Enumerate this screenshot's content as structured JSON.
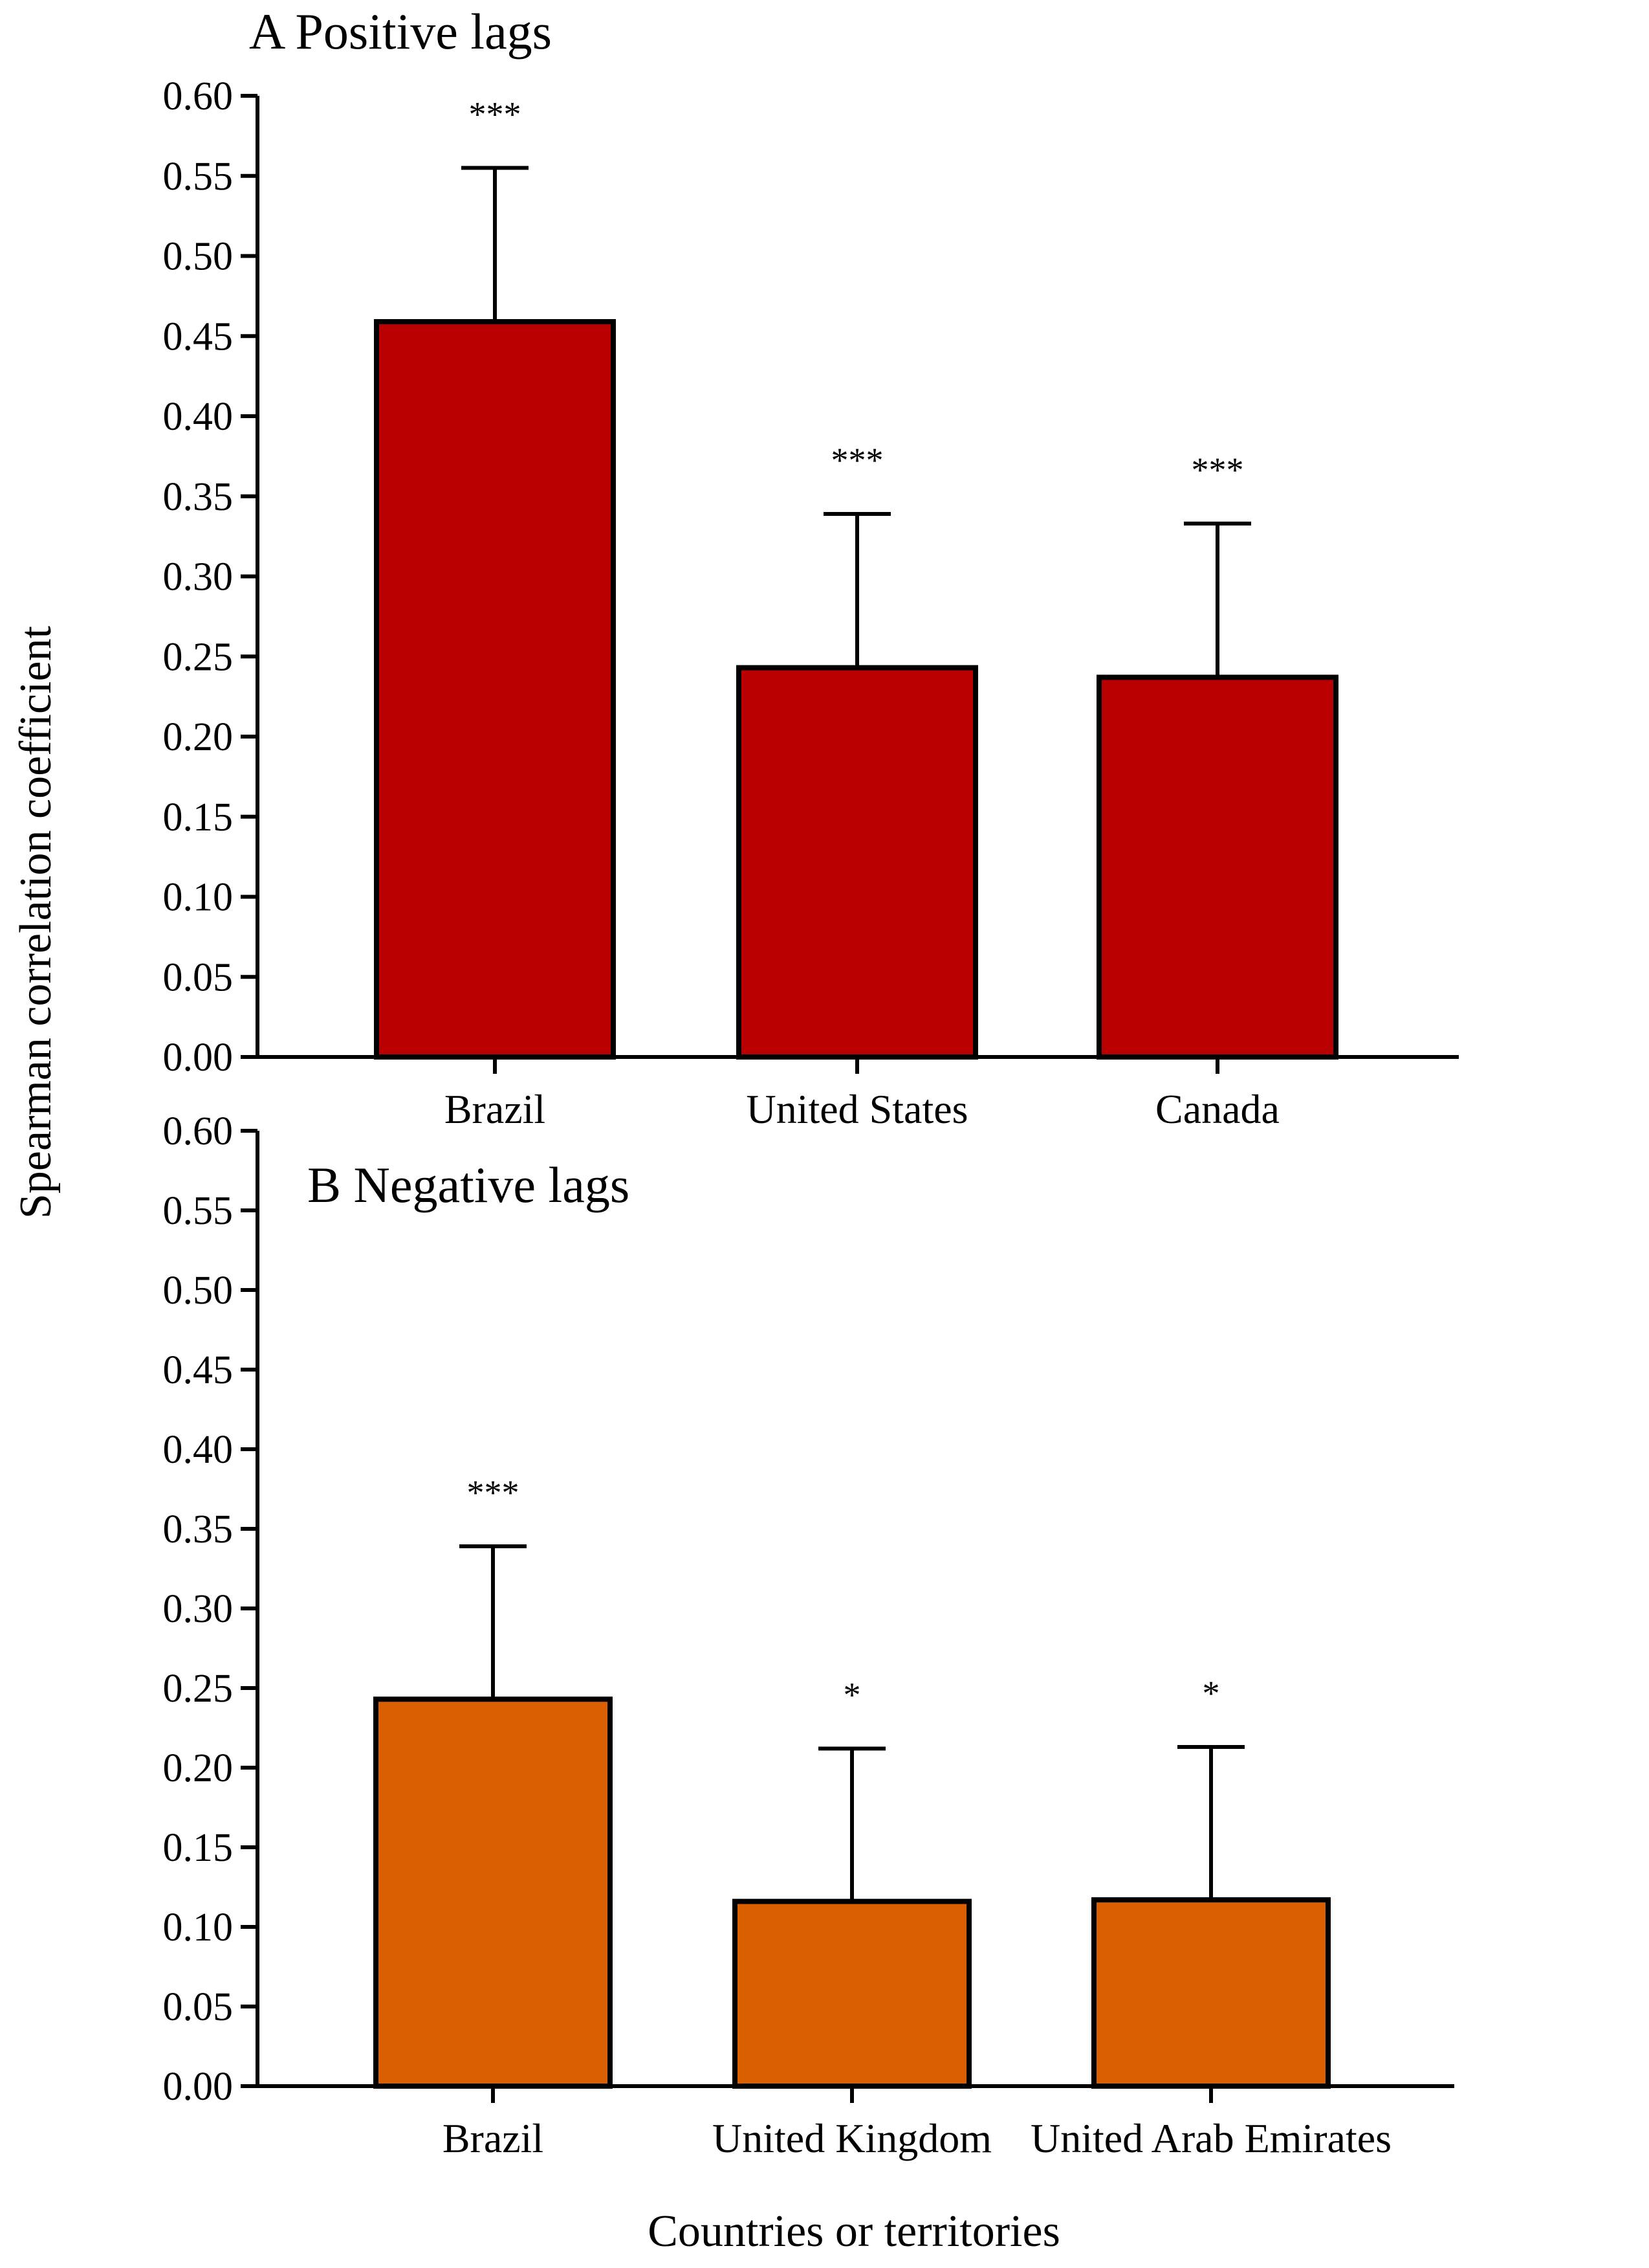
{
  "figure": {
    "ylabel": "Spearman correlation coefficient",
    "xlabel": "Countries or territories"
  },
  "chart_data": [
    {
      "type": "bar",
      "title": "A Positive lags",
      "categories": [
        "Brazil",
        "United States",
        "Canada"
      ],
      "values": [
        0.459,
        0.243,
        0.237
      ],
      "error_upper": [
        0.555,
        0.339,
        0.333
      ],
      "significance": [
        "***",
        "***",
        "***"
      ],
      "ylim": [
        0,
        0.6
      ],
      "yticks": [
        "0.00",
        "0.05",
        "0.10",
        "0.15",
        "0.20",
        "0.25",
        "0.30",
        "0.35",
        "0.40",
        "0.45",
        "0.50",
        "0.55",
        "0.60"
      ],
      "color": "#b80000",
      "xlabel": "",
      "ylabel": "Spearman correlation coefficient"
    },
    {
      "type": "bar",
      "title": "B Negative lags",
      "categories": [
        "Brazil",
        "United Kingdom",
        "United Arab Emirates"
      ],
      "values": [
        0.243,
        0.116,
        0.117
      ],
      "error_upper": [
        0.339,
        0.212,
        0.213
      ],
      "significance": [
        "***",
        "*",
        "*"
      ],
      "ylim": [
        0,
        0.6
      ],
      "yticks": [
        "0.00",
        "0.05",
        "0.10",
        "0.15",
        "0.20",
        "0.25",
        "0.30",
        "0.35",
        "0.40",
        "0.45",
        "0.50",
        "0.55",
        "0.60"
      ],
      "color": "#d95f00",
      "xlabel": "Countries or territories",
      "ylabel": "Spearman correlation coefficient"
    }
  ]
}
